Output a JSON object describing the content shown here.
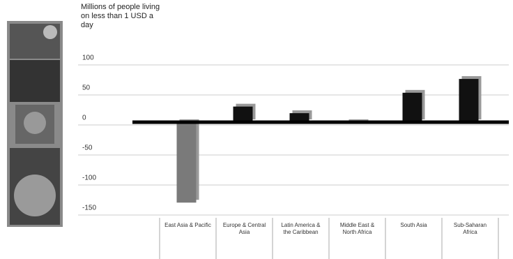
{
  "chart_data": {
    "type": "bar",
    "title": "Millions of people living on less than 1 USD a day",
    "categories": [
      "East Asia & Pacific",
      "Europe & Central Asia",
      "Latin America & the Caribbean",
      "Middle East & North Africa",
      "South Asia",
      "Sub-Saharan Africa"
    ],
    "values": [
      -134,
      26,
      15,
      -2,
      49,
      72
    ],
    "color": "#111111",
    "negative_color": "#7a7a7a",
    "ylim": [
      -150,
      100
    ],
    "yticks": [
      100,
      50,
      0,
      -50,
      -100,
      -150
    ],
    "grid": true
  }
}
